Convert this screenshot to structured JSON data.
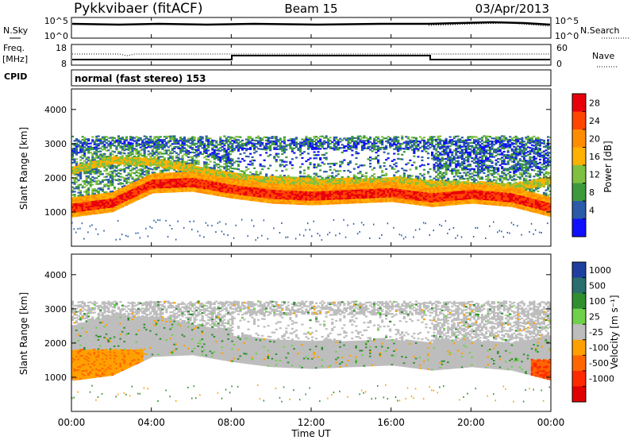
{
  "header": {
    "site": "Pykkvibaer (fitACF)",
    "beam": "Beam 15",
    "date": "03/Apr/2013"
  },
  "noise_panel": {
    "left_label": "N.Sky",
    "right_label": "N.Search",
    "ticks": [
      "10^5",
      "10^0"
    ]
  },
  "freq_panel": {
    "left_label_1": "Freq.",
    "left_label_2": "[MHz]",
    "left_ticks": [
      "18",
      "8"
    ],
    "right_label": "Nave",
    "right_ticks": [
      "60",
      "0"
    ]
  },
  "cpid": {
    "label": "CPID",
    "text": "normal (fast stereo) 153"
  },
  "axes": {
    "ylabel": "Slant Range [km]",
    "yticks": [
      "4000",
      "3000",
      "2000",
      "1000"
    ],
    "xticks": [
      "00:00",
      "04:00",
      "08:00",
      "12:00",
      "16:00",
      "20:00",
      "00:00"
    ],
    "xlabel": "Time UT"
  },
  "power_scale": {
    "label": "Power [dB]",
    "ticks": [
      "28",
      "24",
      "20",
      "16",
      "12",
      "8",
      "4"
    ],
    "colors": [
      "#e8000b",
      "#ff4500",
      "#ff8c00",
      "#ffb000",
      "#7fc040",
      "#3c9a3c",
      "#2a5aa8",
      "#1010ff"
    ]
  },
  "velocity_scale": {
    "label": "Velocity [m s⁻¹]",
    "ticks": [
      "1000",
      "500",
      "100",
      "25",
      "-25",
      "-100",
      "-500",
      "-1000"
    ],
    "colors": [
      "#1f3fa0",
      "#2a6e6e",
      "#2f8f2f",
      "#6fd04a",
      "#bdbdbd",
      "#ffa000",
      "#ff6600",
      "#ff2a00",
      "#e00000"
    ]
  },
  "chart_data": [
    {
      "type": "heatmap",
      "name": "power",
      "xlabel": "Time UT",
      "ylabel": "Slant Range [km]",
      "xlim": [
        "00:00",
        "24:00"
      ],
      "ylim": [
        0,
        4600
      ],
      "colorbar": "Power [dB]",
      "bands": [
        {
          "t": [
            0,
            2,
            4,
            6,
            8,
            10,
            12,
            14,
            16,
            18,
            20,
            22,
            24
          ],
          "range_km": [
            1100,
            1250,
            1800,
            1850,
            1650,
            1500,
            1450,
            1500,
            1550,
            1400,
            1500,
            1400,
            1100
          ],
          "level_db": 26
        },
        {
          "t": [
            0,
            2,
            4,
            6,
            8,
            10,
            12,
            14,
            16,
            18,
            20,
            22,
            24
          ],
          "range_km": [
            2200,
            2500,
            2450,
            2250,
            2000,
            1900,
            1850,
            1850,
            1900,
            1800,
            1750,
            1700,
            1900
          ],
          "level_db": 18
        }
      ]
    },
    {
      "type": "heatmap",
      "name": "velocity",
      "xlabel": "Time UT",
      "ylabel": "Slant Range [km]",
      "xlim": [
        "00:00",
        "24:00"
      ],
      "ylim": [
        0,
        4600
      ],
      "colorbar": "Velocity [m s⁻¹]",
      "regions": [
        {
          "t0": 0,
          "t1": 3.5,
          "r0": 900,
          "r1": 1800,
          "velocity": -300
        },
        {
          "t0": 0,
          "t1": 24,
          "r0": 1100,
          "r1": 3200,
          "velocity": 0
        }
      ]
    }
  ]
}
